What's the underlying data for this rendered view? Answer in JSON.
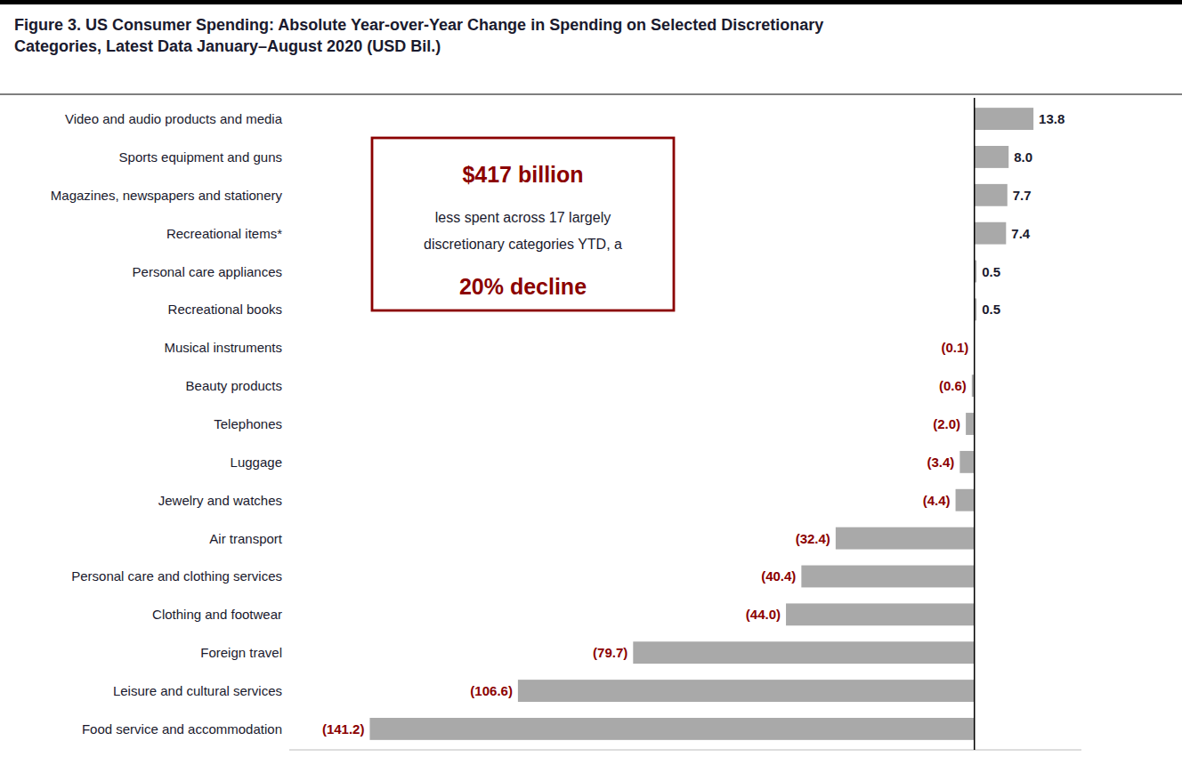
{
  "chart_data": {
    "type": "bar",
    "orientation": "horizontal",
    "title": "Figure 3. US Consumer Spending: Absolute Year-over-Year Change in Spending on Selected Discretionary\nCategories, Latest Data January–August 2020 (USD Bil.)",
    "categories": [
      "Food service and accommodation",
      "Leisure and cultural services",
      "Foreign travel",
      "Clothing and footwear",
      "Personal care and clothing services",
      "Air transport",
      "Jewelry and watches",
      "Luggage",
      "Telephones",
      "Beauty products",
      "Musical instruments",
      "Recreational books",
      "Personal care appliances",
      "Recreational items*",
      "Magazines, newspapers and stationery",
      "Sports equipment and guns",
      "Video and audio products and media"
    ],
    "values": [
      -141.2,
      -106.6,
      -79.7,
      -44.0,
      -40.4,
      -32.4,
      -4.4,
      -3.4,
      -2.0,
      -0.6,
      -0.1,
      0.5,
      0.5,
      7.4,
      7.7,
      8.0,
      13.8
    ],
    "value_labels": [
      "(141.2)",
      "(106.6)",
      "(79.7)",
      "(44.0)",
      "(40.4)",
      "(32.4)",
      "(4.4)",
      "(3.4)",
      "(2.0)",
      "(0.6)",
      "(0.1)",
      "0.5",
      "0.5",
      "7.4",
      "7.7",
      "8.0",
      "13.8"
    ],
    "color": "#a9a9a9",
    "xlim": [
      -160,
      25
    ],
    "data_labels": true,
    "tick_labels": "y",
    "grid": false,
    "annotations": [
      "$417 billion",
      "less spent across 17 largely",
      "discretionary categories YTD, a",
      "20% decline"
    ]
  }
}
